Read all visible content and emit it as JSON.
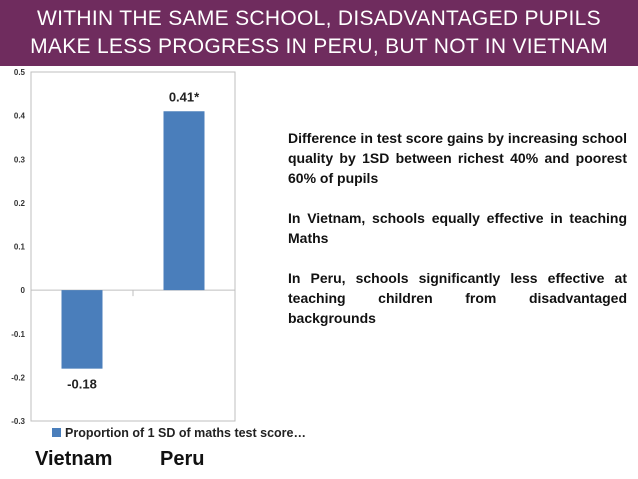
{
  "slide": {
    "title_lines": [
      "WITHIN THE SAME SCHOOL, DISADVANTAGED PUPILS",
      "MAKE LESS PROGRESS IN PERU, BUT NOT IN VIETNAM"
    ],
    "annotations": [
      "Difference in test score gains by increasing school quality by 1SD between richest 40% and poorest 60% of pupils",
      "In Vietnam, schools equally effective in teaching Maths",
      "In Peru, schools significantly less effective at teaching children from disadvantaged backgrounds"
    ],
    "colors": {
      "title_background": "#6f2c5e",
      "bar": "#4a7ebb"
    }
  },
  "chart_data": {
    "type": "bar",
    "categories": [
      "Vietnam",
      "Peru"
    ],
    "series": [
      {
        "name": "Proportion of 1 SD of maths test score…",
        "values": [
          -0.18,
          0.41
        ],
        "labels": [
          "-0.18",
          "0.41*"
        ]
      }
    ],
    "ylim": [
      -0.3,
      0.5
    ],
    "yticks": [
      0.5,
      0.4,
      0.3,
      0.2,
      0.1,
      0,
      -0.1,
      -0.2,
      -0.3
    ],
    "legend_position": "bottom-left",
    "grid": false
  }
}
